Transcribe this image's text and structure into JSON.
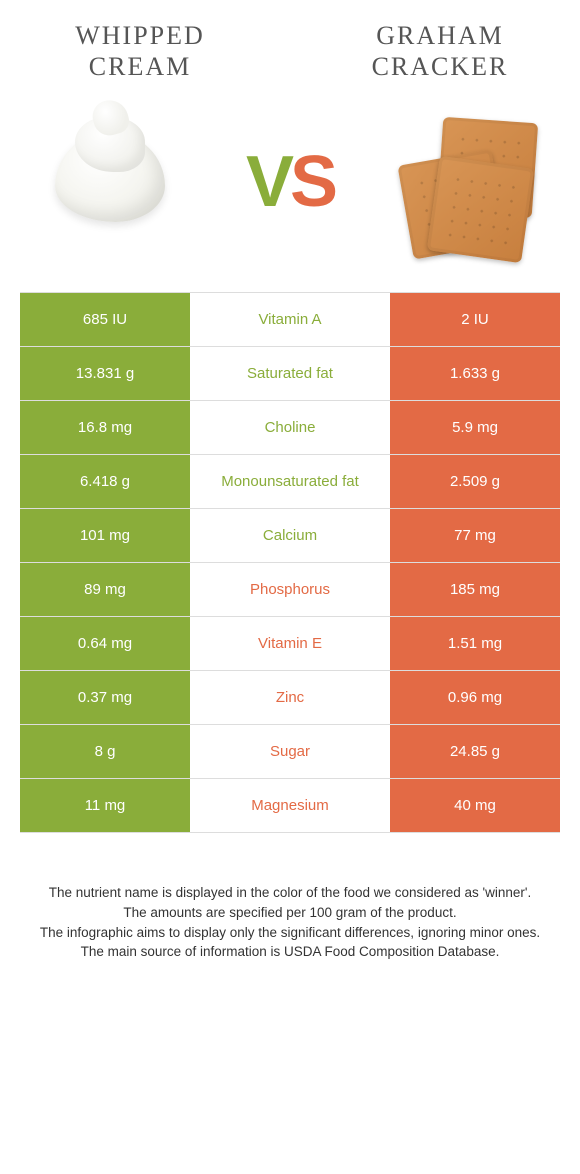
{
  "header": {
    "left_title": "WHIPPED CREAM",
    "right_title": "GRAHAM CRACKER",
    "vs_v": "V",
    "vs_s": "S"
  },
  "colors": {
    "left": "#8aad3a",
    "right": "#e36a45",
    "left_text": "#8aad3a",
    "right_text": "#e36a45"
  },
  "rows": [
    {
      "left": "685 IU",
      "label": "Vitamin A",
      "right": "2 IU",
      "winner": "left"
    },
    {
      "left": "13.831 g",
      "label": "Saturated fat",
      "right": "1.633 g",
      "winner": "left"
    },
    {
      "left": "16.8 mg",
      "label": "Choline",
      "right": "5.9 mg",
      "winner": "left"
    },
    {
      "left": "6.418 g",
      "label": "Monounsaturated fat",
      "right": "2.509 g",
      "winner": "left"
    },
    {
      "left": "101 mg",
      "label": "Calcium",
      "right": "77 mg",
      "winner": "left"
    },
    {
      "left": "89 mg",
      "label": "Phosphorus",
      "right": "185 mg",
      "winner": "right"
    },
    {
      "left": "0.64 mg",
      "label": "Vitamin E",
      "right": "1.51 mg",
      "winner": "right"
    },
    {
      "left": "0.37 mg",
      "label": "Zinc",
      "right": "0.96 mg",
      "winner": "right"
    },
    {
      "left": "8 g",
      "label": "Sugar",
      "right": "24.85 g",
      "winner": "right"
    },
    {
      "left": "11 mg",
      "label": "Magnesium",
      "right": "40 mg",
      "winner": "right"
    }
  ],
  "footnotes": {
    "line1": "The nutrient name is displayed in the color of the food we considered as 'winner'.",
    "line2": "The amounts are specified per 100 gram of the product.",
    "line3": "The infographic aims to display only the significant differences, ignoring minor ones.",
    "line4": "The main source of information is USDA Food Composition Database."
  }
}
